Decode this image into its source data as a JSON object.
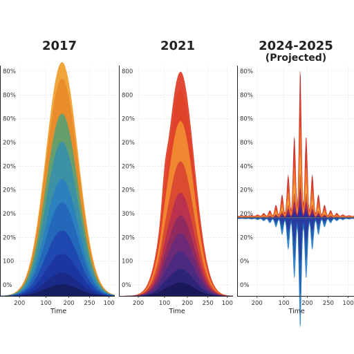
{
  "chart_data": [
    {
      "type": "area",
      "title": "2017",
      "subtitle": "",
      "xlabel": "Time",
      "ylabel": "",
      "x_ticks": [
        "200",
        "100",
        "200",
        "250",
        "100"
      ],
      "y_ticks": [
        "0%",
        "100",
        "20%",
        "20%",
        "20%",
        "20%",
        "20%",
        "80%",
        "80%",
        "80%"
      ],
      "grid": true,
      "shape": "single-peak",
      "peak_height": 0.98,
      "layer_colors": [
        "#f0a030",
        "#e88a2a",
        "#5fa070",
        "#3a90a8",
        "#2a7fc0",
        "#2466b8",
        "#2048b0",
        "#1c36a0",
        "#1a2a88",
        "#161d60"
      ],
      "layer_fractions": [
        1.0,
        0.93,
        0.78,
        0.66,
        0.5,
        0.4,
        0.28,
        0.18,
        0.1,
        0.05
      ]
    },
    {
      "type": "area",
      "title": "2021",
      "subtitle": "",
      "xlabel": "Time",
      "ylabel": "",
      "x_ticks": [
        "200",
        "100",
        "200",
        "250",
        "100"
      ],
      "y_ticks": [
        "0%",
        "100",
        "20%",
        "30%",
        "20%",
        "20%",
        "20%",
        "20%",
        "800",
        "800"
      ],
      "grid": true,
      "shape": "single-peak",
      "peak_height": 0.94,
      "layer_colors": [
        "#e8612a",
        "#e0402a",
        "#f08a30",
        "#d84830",
        "#b83050",
        "#8e2a60",
        "#6c2a78",
        "#4a2a80",
        "#2a2478",
        "#1a1858"
      ],
      "layer_fractions": [
        0.92,
        1.0,
        0.78,
        0.6,
        0.46,
        0.36,
        0.28,
        0.2,
        0.12,
        0.06
      ]
    },
    {
      "type": "area",
      "title": "2024-2025",
      "subtitle": "(Projected)",
      "xlabel": "Time",
      "ylabel": "",
      "x_ticks": [
        "200",
        "100",
        "200",
        "250",
        "100"
      ],
      "y_ticks": [
        "0%",
        "0%",
        "20%",
        "20%",
        "20%",
        "40%",
        "80%",
        "80%",
        "80%",
        "80%"
      ],
      "grid": true,
      "shape": "oscillating-burst",
      "peak_height": 0.96,
      "layer_colors": [
        "#c42a2a",
        "#e0452a",
        "#f07a2a",
        "#f3a33a",
        "#d8602a",
        "#a82a55",
        "#6a2a80",
        "#3a2a90",
        "#2030a8"
      ],
      "layer_fractions": [
        1.0,
        0.82,
        0.62,
        0.42,
        0.3,
        0.2,
        0.12,
        0.07,
        0.04
      ],
      "below_colors": [
        "#2a7ec8",
        "#1f5fb0",
        "#2a3aa0"
      ],
      "below_fractions": [
        1.0,
        0.7,
        0.4
      ]
    }
  ]
}
